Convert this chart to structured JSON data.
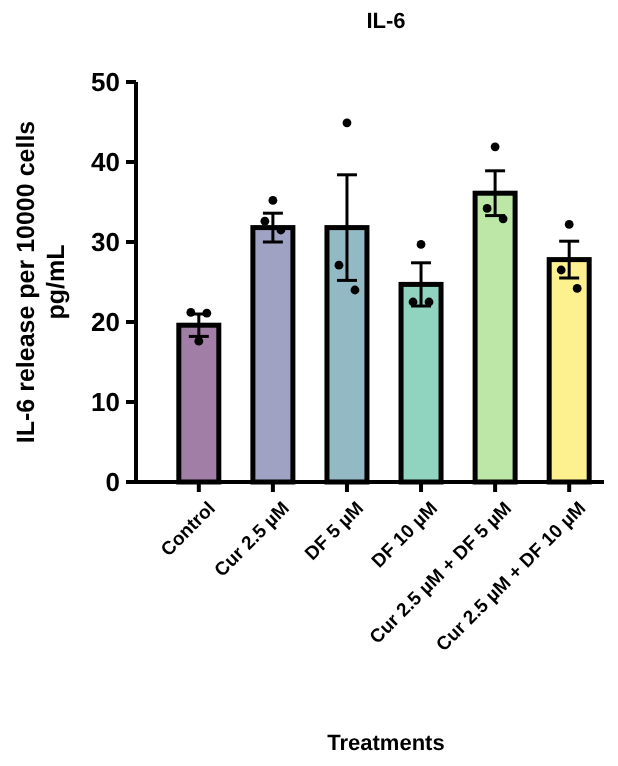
{
  "chart_data": {
    "type": "bar",
    "title": "IL-6",
    "xlabel": "Treatments",
    "ylabel": "IL-6 release per 10000 cells\npg/mL",
    "categories": [
      "Control",
      "Cur 2.5 µM",
      "DF 5 µM",
      "DF 10 µM",
      "Cur 2.5 µM + DF 5 µM",
      "Cur 2.5 µM + DF 10 µM"
    ],
    "ylim": [
      0,
      50
    ],
    "yticks": [
      0,
      10,
      20,
      30,
      40,
      50
    ],
    "grid": false,
    "series": [
      {
        "values": [
          19.6,
          31.8,
          31.8,
          24.7,
          36.1,
          27.8
        ],
        "colors": [
          "#a07ea6",
          "#a0a2c4",
          "#93b9c4",
          "#90d4c0",
          "#bde7a6",
          "#fdf08f"
        ],
        "errors": [
          1.4,
          1.8,
          6.6,
          2.7,
          2.8,
          2.3
        ]
      },
      {
        "type": "scatter",
        "color": "#000000",
        "marker": "circle",
        "x": [
          "Control",
          "Control",
          "Control",
          "Cur 2.5 µM",
          "Cur 2.5 µM",
          "Cur 2.5 µM",
          "DF 5 µM",
          "DF 5 µM",
          "DF 5 µM",
          "DF 10 µM",
          "DF 10 µM",
          "DF 10 µM",
          "Cur 2.5 µM + DF 5 µM",
          "Cur 2.5 µM + DF 5 µM",
          "Cur 2.5 µM + DF 5 µM",
          "Cur 2.5 µM + DF 10 µM",
          "Cur 2.5 µM + DF 10 µM",
          "Cur 2.5 µM + DF 10 µM"
        ],
        "values": [
          21.2,
          17.6,
          21.1,
          32.6,
          35.2,
          31.5,
          27.1,
          44.9,
          24.0,
          22.5,
          29.7,
          22.5,
          34.2,
          41.9,
          32.9,
          26.5,
          32.2,
          24.2
        ]
      }
    ]
  }
}
